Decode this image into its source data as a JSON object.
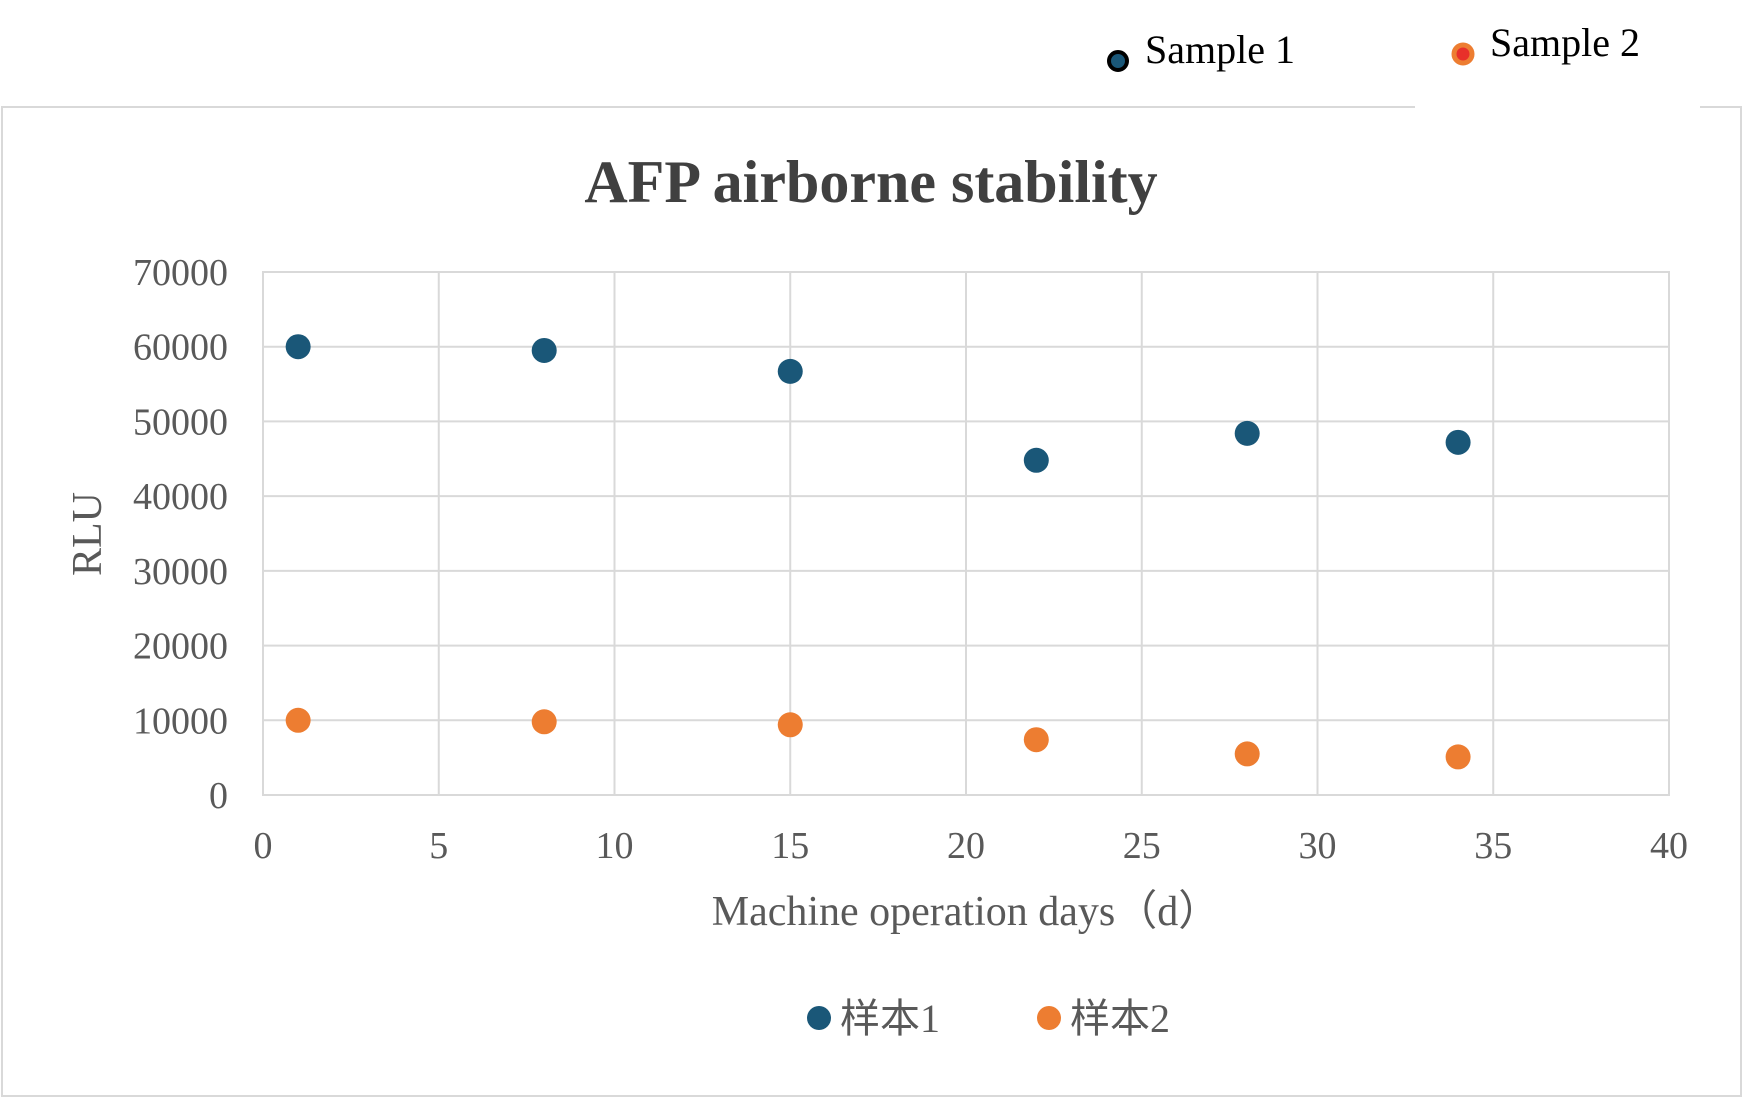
{
  "top_legend": [
    {
      "label": "Sample 1",
      "color": "#1a5778",
      "ring": "#000000"
    },
    {
      "label": "Sample 2",
      "color": "#e8302a",
      "ring": "#ed7d31"
    }
  ],
  "chart_data": {
    "type": "scatter",
    "title": "AFP airborne stability",
    "xlabel": "Machine operation days（d）",
    "ylabel": "RLU",
    "xlim": [
      0,
      40
    ],
    "ylim": [
      0,
      70000
    ],
    "xticks": [
      0,
      5,
      10,
      15,
      20,
      25,
      30,
      35,
      40
    ],
    "yticks": [
      0,
      10000,
      20000,
      30000,
      40000,
      50000,
      60000,
      70000
    ],
    "grid": true,
    "legend_position": "bottom",
    "series": [
      {
        "name": "样本1",
        "color": "#1a5778",
        "points": [
          [
            1,
            60000
          ],
          [
            8,
            59500
          ],
          [
            15,
            56700
          ],
          [
            22,
            44800
          ],
          [
            28,
            48400
          ],
          [
            34,
            47200
          ]
        ]
      },
      {
        "name": "样本2",
        "color": "#ed7d31",
        "points": [
          [
            1,
            10000
          ],
          [
            8,
            9800
          ],
          [
            15,
            9400
          ],
          [
            22,
            7400
          ],
          [
            28,
            5500
          ],
          [
            34,
            5100
          ]
        ]
      }
    ]
  }
}
